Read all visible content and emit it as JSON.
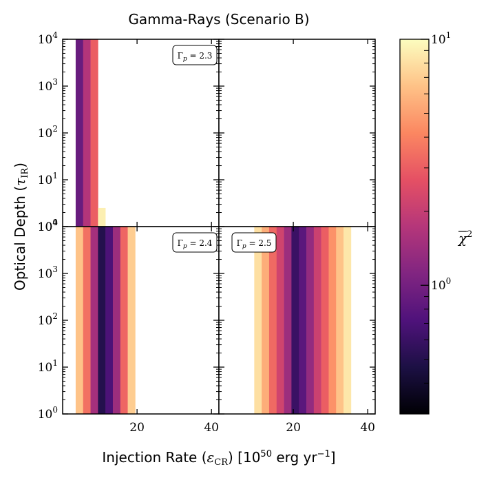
{
  "chart_data": {
    "type": "heatmap",
    "title": "Gamma-Rays (Scenario B)",
    "xlabel_parts": [
      "Injection Rate (",
      "ε",
      "CR",
      ") [10",
      "50",
      " erg yr",
      "−1",
      "]"
    ],
    "ylabel_parts": [
      "Optical Depth (",
      "τ",
      "IR",
      ")"
    ],
    "x_ticks": [
      20,
      40
    ],
    "xlim": [
      0,
      42
    ],
    "y_scale": "log",
    "ylim": [
      1,
      10000
    ],
    "y_tick_base": "10",
    "y_tick_exponents": [
      "0",
      "1",
      "2",
      "3",
      "4"
    ],
    "colorbar": {
      "scale": "log",
      "colormap": "magma",
      "range": [
        0.3,
        10
      ],
      "tick_base": "10",
      "tick_exponents": [
        "0",
        "1"
      ],
      "label_symbol": "χ",
      "label_sup": "2"
    },
    "panels": [
      {
        "id": "top-left",
        "annotation": "Γ",
        "ann_sub": "p",
        "ann_value": " = 2.3",
        "cells": [
          {
            "x0": 3.5,
            "x1": 5.5,
            "y0": 1,
            "y1": 10000,
            "chi2": 0.9
          },
          {
            "x0": 5.5,
            "x1": 7.5,
            "y0": 1,
            "y1": 10000,
            "chi2": 1.7
          },
          {
            "x0": 7.5,
            "x1": 9.5,
            "y0": 1,
            "y1": 10000,
            "chi2": 3.0
          },
          {
            "x0": 9.5,
            "x1": 11.5,
            "y0": 1,
            "y1": 2.5,
            "chi2": 9.0
          }
        ]
      },
      {
        "id": "top-right",
        "annotation": "",
        "ann_sub": "",
        "ann_value": "",
        "cells": []
      },
      {
        "id": "bottom-left",
        "annotation": "Γ",
        "ann_sub": "p",
        "ann_value": " = 2.4",
        "cells": [
          {
            "x0": 3.5,
            "x1": 5.5,
            "y0": 1,
            "y1": 10000,
            "chi2": 6.5
          },
          {
            "x0": 5.5,
            "x1": 7.5,
            "y0": 1,
            "y1": 10000,
            "chi2": 3.5
          },
          {
            "x0": 7.5,
            "x1": 9.5,
            "y0": 1,
            "y1": 10000,
            "chi2": 1.5
          },
          {
            "x0": 9.5,
            "x1": 11.5,
            "y0": 1,
            "y1": 10000,
            "chi2": 0.5
          },
          {
            "x0": 11.5,
            "x1": 13.5,
            "y0": 1,
            "y1": 10000,
            "chi2": 0.7
          },
          {
            "x0": 13.5,
            "x1": 15.5,
            "y0": 1,
            "y1": 10000,
            "chi2": 1.4
          },
          {
            "x0": 15.5,
            "x1": 17.5,
            "y0": 1,
            "y1": 10000,
            "chi2": 3.2
          },
          {
            "x0": 17.5,
            "x1": 19.5,
            "y0": 1,
            "y1": 10000,
            "chi2": 7.0
          }
        ]
      },
      {
        "id": "bottom-right",
        "annotation": "Γ",
        "ann_sub": "p",
        "ann_value": " = 2.5",
        "cells": [
          {
            "x0": 9.5,
            "x1": 11.5,
            "y0": 1,
            "y1": 10000,
            "chi2": 8.0
          },
          {
            "x0": 11.5,
            "x1": 13.5,
            "y0": 1,
            "y1": 10000,
            "chi2": 5.5
          },
          {
            "x0": 13.5,
            "x1": 15.5,
            "y0": 1,
            "y1": 10000,
            "chi2": 3.3
          },
          {
            "x0": 15.5,
            "x1": 17.5,
            "y0": 1,
            "y1": 10000,
            "chi2": 2.2
          },
          {
            "x0": 17.5,
            "x1": 19.5,
            "y0": 1,
            "y1": 10000,
            "chi2": 1.4
          },
          {
            "x0": 19.5,
            "x1": 21.5,
            "y0": 1,
            "y1": 10000,
            "chi2": 0.6
          },
          {
            "x0": 21.5,
            "x1": 23.5,
            "y0": 1,
            "y1": 10000,
            "chi2": 0.8
          },
          {
            "x0": 23.5,
            "x1": 25.5,
            "y0": 1,
            "y1": 10000,
            "chi2": 1.3
          },
          {
            "x0": 25.5,
            "x1": 27.5,
            "y0": 1,
            "y1": 10000,
            "chi2": 2.1
          },
          {
            "x0": 27.5,
            "x1": 29.5,
            "y0": 1,
            "y1": 10000,
            "chi2": 3.0
          },
          {
            "x0": 29.5,
            "x1": 31.5,
            "y0": 1,
            "y1": 10000,
            "chi2": 4.5
          },
          {
            "x0": 31.5,
            "x1": 33.5,
            "y0": 1,
            "y1": 10000,
            "chi2": 6.5
          },
          {
            "x0": 33.5,
            "x1": 35.5,
            "y0": 1,
            "y1": 10000,
            "chi2": 8.5
          }
        ]
      }
    ]
  }
}
